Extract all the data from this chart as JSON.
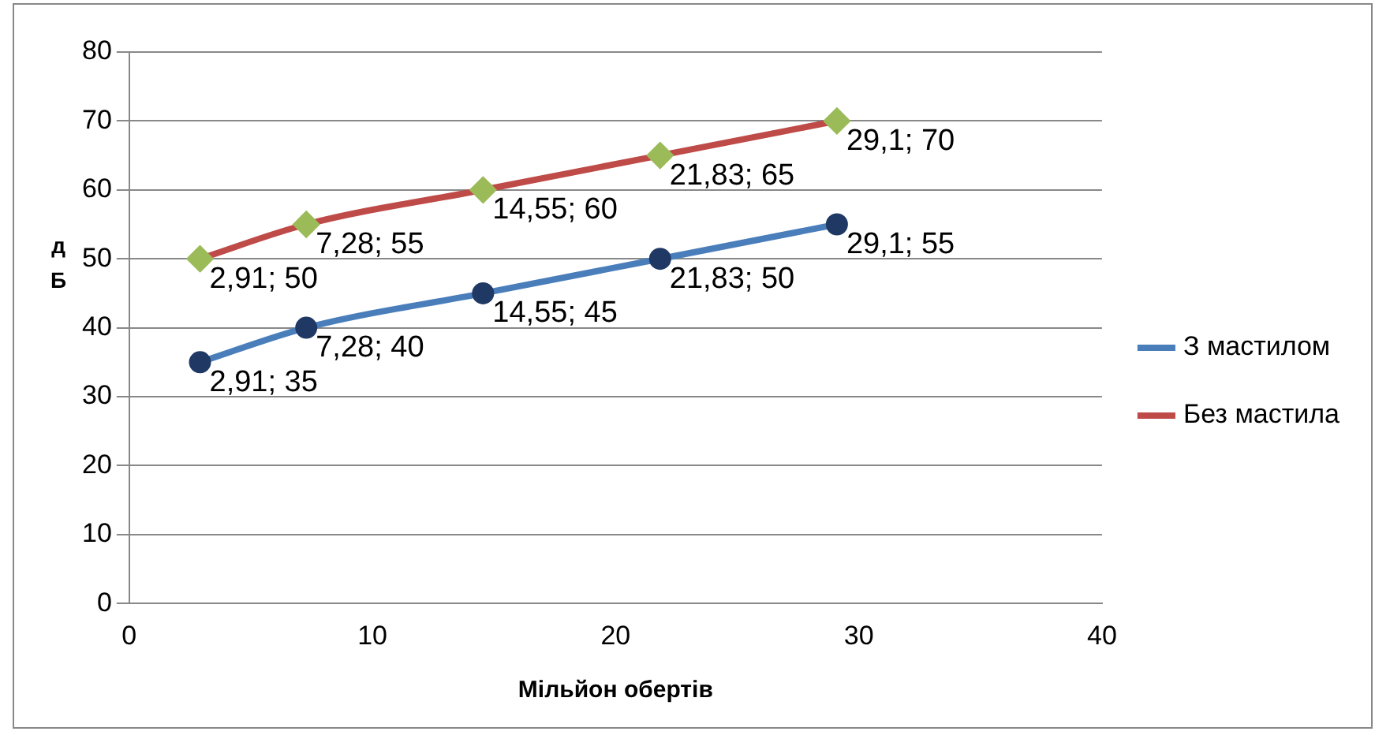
{
  "chart_data": {
    "type": "line",
    "xlabel": "Мільйон обертів",
    "ylabel": "дБ",
    "xlim": [
      0,
      40
    ],
    "xticks": [
      0,
      10,
      20,
      30,
      40
    ],
    "ylim": [
      0,
      80
    ],
    "yticks": [
      0,
      10,
      20,
      30,
      40,
      50,
      60,
      70,
      80
    ],
    "grid": "y",
    "legend": "right",
    "line_style": "solid",
    "series": [
      {
        "name": "З мастилом",
        "color": "#4a7ebb",
        "marker": "circle",
        "x": [
          2.91,
          7.28,
          14.55,
          21.83,
          29.1
        ],
        "values": [
          35,
          40,
          45,
          50,
          55
        ],
        "value_labels": [
          "2,91; 35",
          "7,28; 40",
          "14,55; 45",
          "21,83; 50",
          "29,1; 55"
        ]
      },
      {
        "name": "Без мастила",
        "color": "#be4b48",
        "marker": "diamond",
        "x": [
          2.91,
          7.28,
          14.55,
          21.83,
          29.1
        ],
        "values": [
          50,
          55,
          60,
          65,
          70
        ],
        "value_labels": [
          "2,91; 50",
          "7,28; 55",
          "14,55; 60",
          "21,83; 65",
          "29,1; 70"
        ]
      }
    ]
  }
}
